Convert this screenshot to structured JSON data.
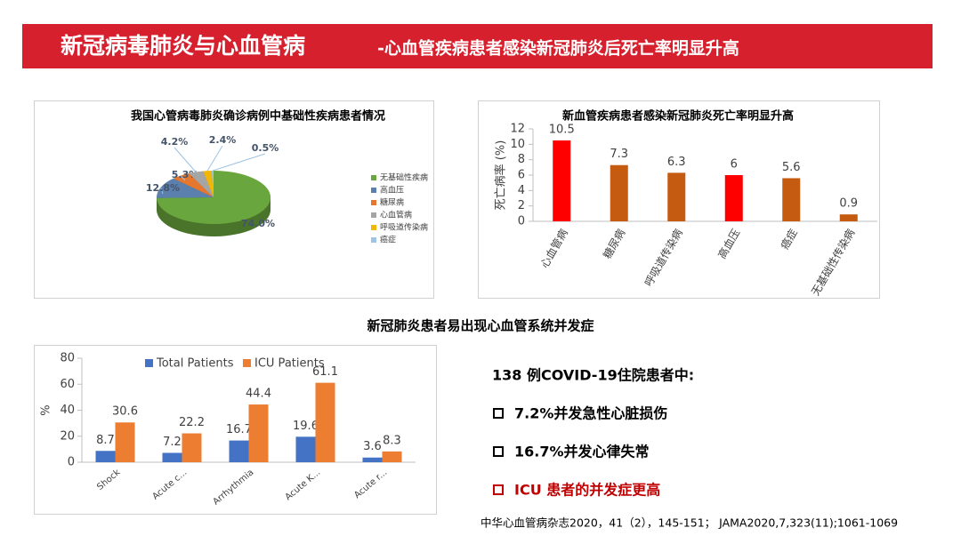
{
  "header": {
    "title": "新冠病毒肺炎与心血管病",
    "subtitle": "-心血管疾病患者感染新冠肺炎后死亡率明显升高"
  },
  "chart_data": [
    {
      "type": "pie",
      "title": "我国心管病毒肺炎确诊病例中基础性疾病患者情况",
      "categories": [
        "无基础性疾病",
        "高血压",
        "糖尿病",
        "心血管病",
        "呼吸道传染病",
        "癌症"
      ],
      "values": [
        74.0,
        12.8,
        5.3,
        4.2,
        2.4,
        0.5
      ],
      "value_labels": [
        "74.0%",
        "12.8%",
        "5.3%",
        "4.2%",
        "2.4%",
        "0.5%"
      ],
      "colors": [
        "#6aa63e",
        "#5b80ad",
        "#e5772e",
        "#a5a5a5",
        "#f2b705",
        "#9dc3e6"
      ],
      "legend": "right"
    },
    {
      "type": "bar",
      "title": "新血管疾病患者感染新冠肺炎死亡率明显升高",
      "y_label": "死亡病率 (%)",
      "categories": [
        "心血管病",
        "糖尿病",
        "呼吸道传染病",
        "高血压",
        "癌症",
        "无基础性传染病"
      ],
      "values": [
        10.5,
        7.3,
        6.3,
        6,
        5.6,
        0.9
      ],
      "colors": [
        "#ff0000",
        "#c55a11",
        "#c55a11",
        "#ff0000",
        "#c55a11",
        "#c55a11"
      ],
      "ylim": [
        0,
        12
      ],
      "yticks": [
        0,
        2,
        4,
        6,
        8,
        10,
        12
      ]
    },
    {
      "type": "bar",
      "y_label": "%",
      "categories": [
        "Shock",
        "Acute c...",
        "Arrhythmia",
        "Acute K...",
        "Acute r..."
      ],
      "series": [
        {
          "name": "Total Patients",
          "color": "#4472c4",
          "values": [
            8.7,
            7.2,
            16.7,
            19.6,
            3.6
          ]
        },
        {
          "name": "ICU Patients",
          "color": "#ed7d31",
          "values": [
            30.6,
            22.2,
            44.4,
            61.1,
            8.3
          ]
        }
      ],
      "ylim": [
        0,
        80
      ],
      "yticks": [
        0,
        20,
        40,
        60,
        80
      ],
      "legend": "top"
    }
  ],
  "section_title": "新冠肺炎患者易出现心血管系统并发症",
  "findings": {
    "heading": "138 例COVID-19住院患者中:",
    "items": [
      "7.2%并发急性心脏损伤",
      "16.7%并发心律失常",
      "ICU 患者的并发症更高"
    ]
  },
  "citation": "中华心血管病杂志2020，41（2），145-151； JAMA2020,7,323(11);1061-1069"
}
